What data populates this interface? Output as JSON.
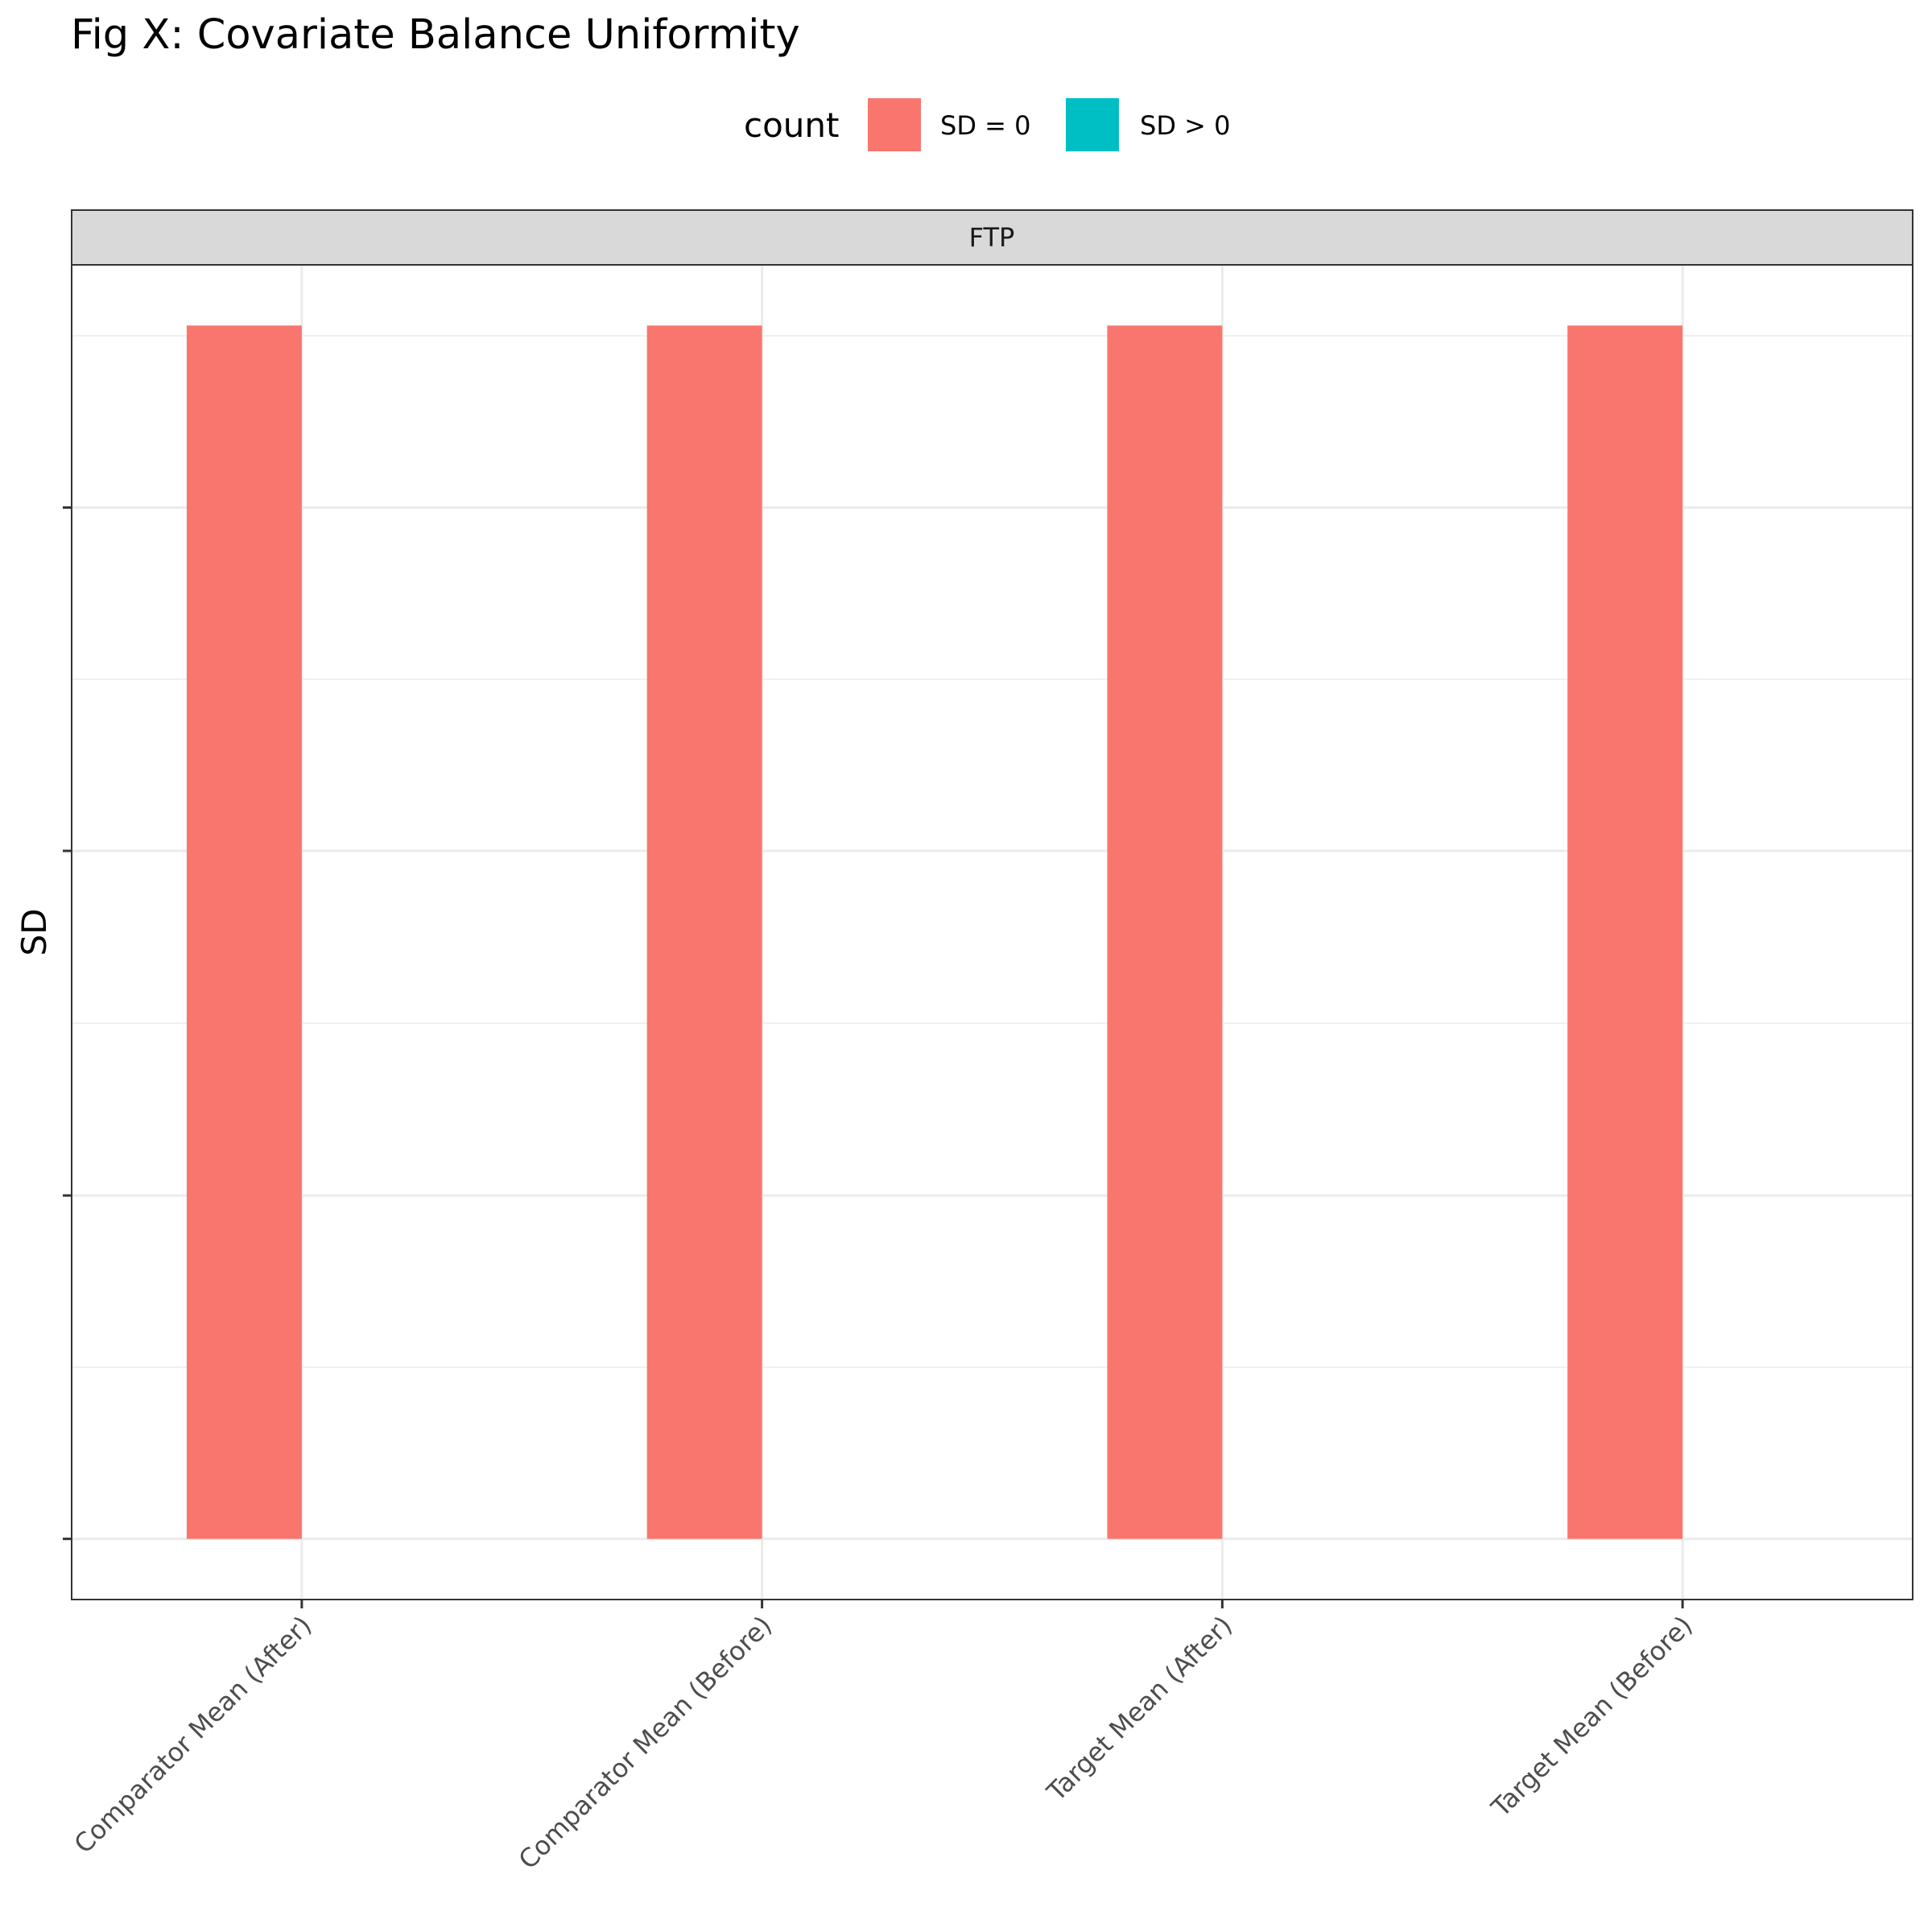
{
  "chart_data": {
    "type": "bar",
    "title": "Fig X: Covariate Balance Uniformity",
    "xlabel": "",
    "ylabel": "SD",
    "facet": "FTP",
    "categories": [
      "Comparator Mean (After)",
      "Comparator Mean (Before)",
      "Target Mean (After)",
      "Target Mean (Before)"
    ],
    "legend": {
      "title": "count",
      "position": "top",
      "entries": [
        {
          "label": "SD = 0",
          "color": "#F8766D"
        },
        {
          "label": "SD > 0",
          "color": "#00BFC4"
        }
      ]
    },
    "series": [
      {
        "name": "SD = 0",
        "color": "#F8766D",
        "values": [
          1,
          1,
          1,
          1
        ]
      },
      {
        "name": "SD > 0",
        "color": "#00BFC4",
        "values": [
          0,
          0,
          0,
          0
        ]
      }
    ],
    "ylim": [
      -0.05,
      1.05
    ],
    "yticks": [
      0,
      0.283,
      0.567,
      0.85
    ],
    "y_tick_labels_shown": false,
    "grid": true
  }
}
